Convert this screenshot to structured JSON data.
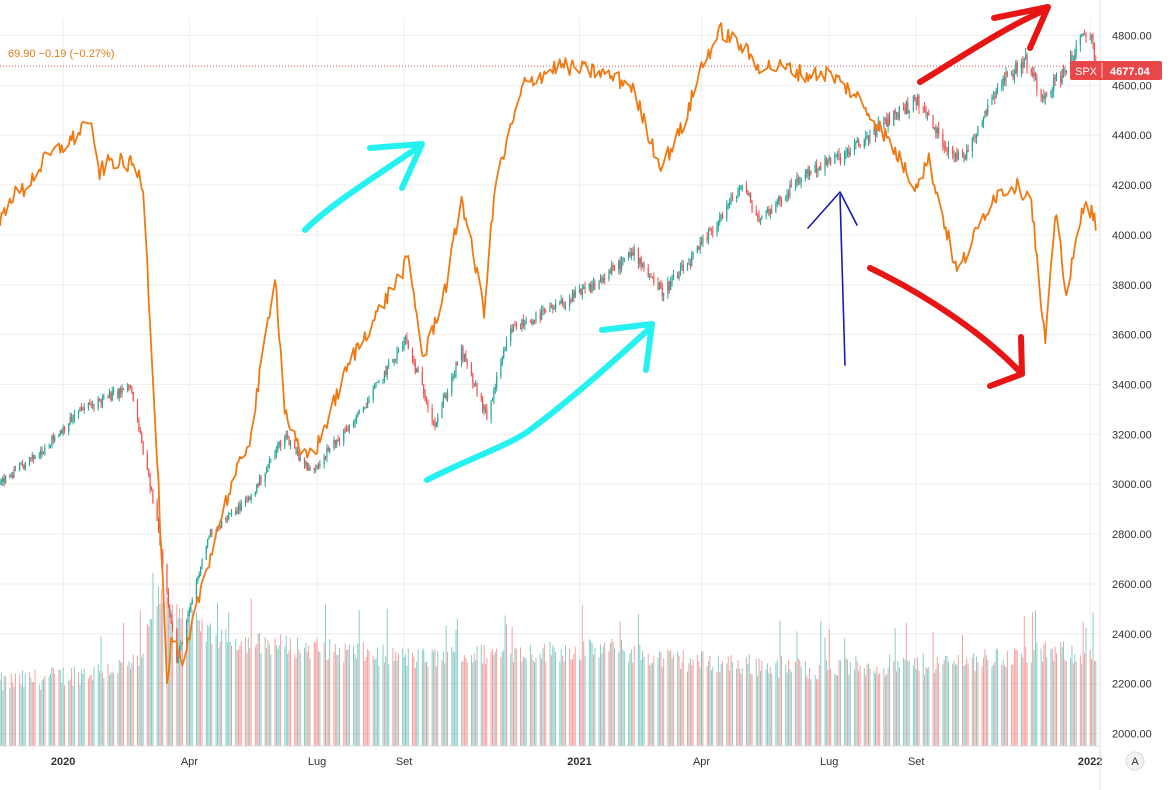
{
  "header": {
    "oscillator_readout": "69.90 −0.19 (−0.27%)"
  },
  "price_tag": {
    "symbol": "SPX",
    "value": "4677.04",
    "color": "#e8474a"
  },
  "axis_badge": "A",
  "colors": {
    "up": "#26a69a",
    "down": "#ef5350",
    "oscillator": "#f07a12",
    "cyan_arrow": "#25f1f1",
    "red_arrow": "#e81515",
    "blue_arrow": "#1b1bb0",
    "grid": "#eeeeee",
    "price_line": "#e8474a"
  },
  "chart_data": {
    "type": "line",
    "xlabel": "",
    "ylabel": "",
    "x_tick_labels": [
      "2020",
      "Apr",
      "Lug",
      "Set",
      "2021",
      "Apr",
      "Lug",
      "Set",
      "2022"
    ],
    "x_tick_dates": [
      "2020-01-02",
      "2020-04-01",
      "2020-07-01",
      "2020-09-01",
      "2021-01-04",
      "2021-04-01",
      "2021-07-01",
      "2021-09-01",
      "2022-01-03"
    ],
    "x_range": [
      "2019-11-18",
      "2022-01-10"
    ],
    "y_tick_labels": [
      "2000.00",
      "2200.00",
      "2400.00",
      "2600.00",
      "2800.00",
      "3000.00",
      "3200.00",
      "3400.00",
      "3600.00",
      "3800.00",
      "4000.00",
      "4200.00",
      "4400.00",
      "4600.00",
      "4800.00"
    ],
    "ylim": [
      1950,
      4870
    ],
    "grid": true,
    "last_price": 4677.04,
    "series": [
      {
        "name": "SPX",
        "style": "candlestick",
        "x": [
          "2019-11-18",
          "2019-12-15",
          "2020-01-15",
          "2020-02-19",
          "2020-03-09",
          "2020-03-23",
          "2020-04-15",
          "2020-05-15",
          "2020-06-08",
          "2020-06-26",
          "2020-07-30",
          "2020-09-02",
          "2020-09-23",
          "2020-10-12",
          "2020-10-30",
          "2020-11-16",
          "2020-12-15",
          "2021-01-15",
          "2021-02-12",
          "2021-03-04",
          "2021-03-25",
          "2021-04-30",
          "2021-05-12",
          "2021-06-15",
          "2021-07-15",
          "2021-08-16",
          "2021-09-02",
          "2021-09-20",
          "2021-10-04",
          "2021-10-29",
          "2021-11-18",
          "2021-11-30",
          "2021-12-15",
          "2021-12-29",
          "2022-01-04",
          "2022-01-07"
        ],
        "values": [
          3000,
          3120,
          3300,
          3390,
          2850,
          2290,
          2800,
          2950,
          3200,
          3050,
          3270,
          3580,
          3240,
          3530,
          3270,
          3620,
          3700,
          3800,
          3930,
          3770,
          3900,
          4200,
          4060,
          4250,
          4330,
          4480,
          4540,
          4370,
          4300,
          4600,
          4700,
          4560,
          4650,
          4790,
          4800,
          4677
        ]
      },
      {
        "name": "",
        "style": "line",
        "x": [
          "2019-11-18",
          "2019-11-25",
          "2019-12-05",
          "2019-12-20",
          "2020-01-10",
          "2020-01-20",
          "2020-01-28",
          "2020-02-05",
          "2020-02-21",
          "2020-02-28",
          "2020-03-05",
          "2020-03-10",
          "2020-03-16",
          "2020-03-20",
          "2020-03-27",
          "2020-04-10",
          "2020-04-25",
          "2020-05-15",
          "2020-06-01",
          "2020-06-08",
          "2020-06-20",
          "2020-07-01",
          "2020-07-25",
          "2020-08-25",
          "2020-09-04",
          "2020-09-15",
          "2020-10-01",
          "2020-10-12",
          "2020-10-28",
          "2020-11-05",
          "2020-11-25",
          "2020-12-20",
          "2021-01-20",
          "2021-02-10",
          "2021-03-01",
          "2021-03-04",
          "2021-03-20",
          "2021-04-01",
          "2021-04-15",
          "2021-05-01",
          "2021-05-10",
          "2021-06-01",
          "2021-06-15",
          "2021-07-01",
          "2021-07-20",
          "2021-08-10",
          "2021-08-31",
          "2021-09-10",
          "2021-09-30",
          "2021-10-05",
          "2021-10-25",
          "2021-11-10",
          "2021-11-22",
          "2021-11-30",
          "2021-12-02",
          "2021-12-10",
          "2021-12-17",
          "2021-12-30",
          "2022-01-07"
        ],
        "values": [
          4050,
          4150,
          4180,
          4300,
          4390,
          4470,
          4250,
          4300,
          4280,
          4200,
          3550,
          3000,
          2200,
          2400,
          2250,
          2600,
          2900,
          3200,
          3850,
          3300,
          3100,
          3150,
          3500,
          3800,
          3900,
          3500,
          3800,
          4150,
          3700,
          4200,
          4600,
          4680,
          4650,
          4600,
          4300,
          4280,
          4450,
          4680,
          4820,
          4750,
          4680,
          4670,
          4640,
          4650,
          4560,
          4400,
          4200,
          4300,
          3850,
          3900,
          4150,
          4200,
          4150,
          3650,
          3580,
          4100,
          3750,
          4150,
          4050
        ]
      },
      {
        "name": "Volume",
        "style": "histogram",
        "x": [
          "2019-11-18",
          "2020-01-15",
          "2020-02-25",
          "2020-03-10",
          "2020-03-25",
          "2020-04-20",
          "2020-06-15",
          "2020-09-10",
          "2020-11-05",
          "2021-01-28",
          "2021-03-05",
          "2021-06-18",
          "2021-09-17",
          "2021-11-26",
          "2021-12-17",
          "2022-01-07"
        ],
        "values": [
          2200,
          2240,
          2280,
          2550,
          2500,
          2380,
          2350,
          2300,
          2320,
          2340,
          2300,
          2260,
          2280,
          2320,
          2330,
          2300
        ]
      }
    ]
  }
}
